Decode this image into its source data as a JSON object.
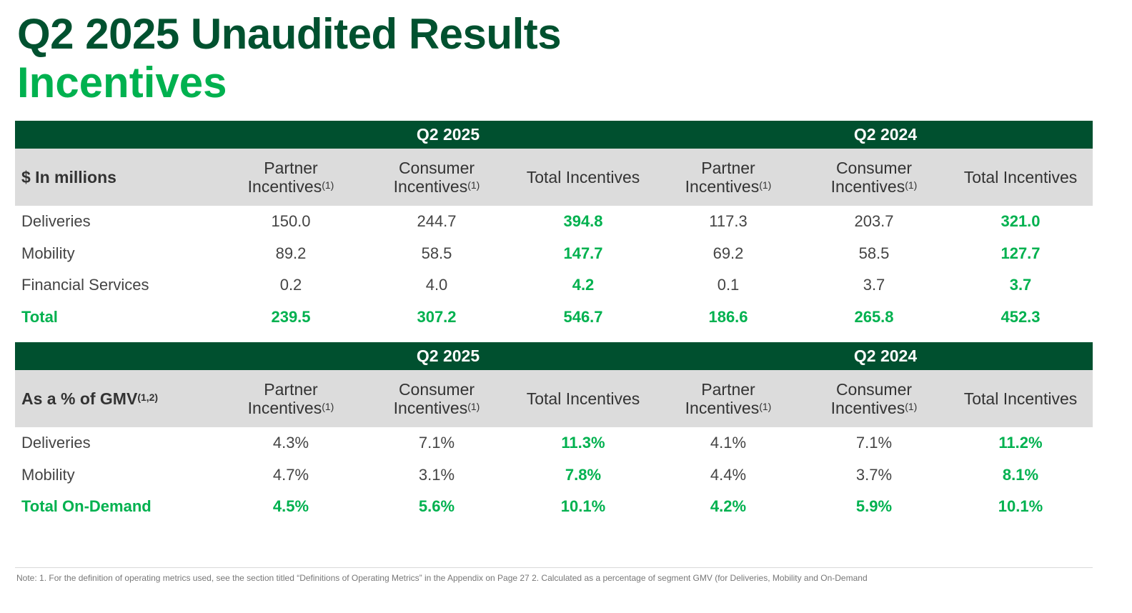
{
  "title": "Q2 2025 Unaudited Results",
  "subtitle": "Incentives",
  "periods": [
    "Q2 2025",
    "Q2 2024"
  ],
  "columns": {
    "partner": "Partner Incentives",
    "consumer": "Consumer Incentives",
    "total": "Total Incentives",
    "footnote_ref": "(1)"
  },
  "table1": {
    "label": "$ In millions",
    "rows": [
      {
        "name": "Deliveries",
        "values": [
          "150.0",
          "244.7",
          "394.8",
          "117.3",
          "203.7",
          "321.0"
        ]
      },
      {
        "name": "Mobility",
        "values": [
          "89.2",
          "58.5",
          "147.7",
          "69.2",
          "58.5",
          "127.7"
        ]
      },
      {
        "name": "Financial Services",
        "values": [
          "0.2",
          "4.0",
          "4.2",
          "0.1",
          "3.7",
          "3.7"
        ]
      },
      {
        "name": "Total",
        "values": [
          "239.5",
          "307.2",
          "546.7",
          "186.6",
          "265.8",
          "452.3"
        ]
      }
    ]
  },
  "table2": {
    "label": "As a % of GMV",
    "label_ref": "(1,2)",
    "rows": [
      {
        "name": "Deliveries",
        "values": [
          "4.3%",
          "7.1%",
          "11.3%",
          "4.1%",
          "7.1%",
          "11.2%"
        ]
      },
      {
        "name": "Mobility",
        "values": [
          "4.7%",
          "3.1%",
          "7.8%",
          "4.4%",
          "3.7%",
          "8.1%"
        ]
      },
      {
        "name": "Total On-Demand",
        "values": [
          "4.5%",
          "5.6%",
          "10.1%",
          "4.2%",
          "5.9%",
          "10.1%"
        ]
      }
    ]
  },
  "note": "Note: 1. For the definition of operating metrics used, see the section titled “Definitions of Operating Metrics” in the Appendix on Page 27 2. Calculated as a percentage of segment GMV (for Deliveries, Mobility and On-Demand",
  "colors": {
    "dark_green": "#00502f",
    "bright_green": "#00b14f",
    "header_gray": "#dcdcdc"
  }
}
